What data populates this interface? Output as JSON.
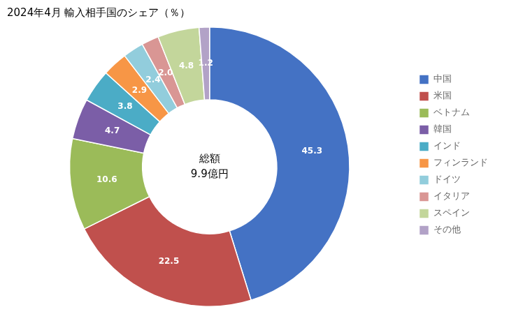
{
  "chart_data": {
    "type": "doughnut",
    "title": "2024年4月 輸入相手国のシェア（％）",
    "annotations": [
      "総額",
      "9.9億円"
    ],
    "categories": [
      "中国",
      "米国",
      "ベトナム",
      "韓国",
      "インド",
      "フィンランド",
      "ドイツ",
      "イタリア",
      "スペイン",
      "その他"
    ],
    "values": [
      45.3,
      22.5,
      10.6,
      4.7,
      3.8,
      2.9,
      2.4,
      2.0,
      4.8,
      1.2
    ],
    "value_labels": [
      "45.3",
      "22.5",
      "10.6",
      "4.7",
      "3.8",
      "2.9",
      "2.4",
      "2.0",
      "4.8",
      "1.2"
    ],
    "colors": [
      "#4472C4",
      "#C0504D",
      "#9BBB59",
      "#7B5EA7",
      "#4BACC6",
      "#F79646",
      "#92CDDC",
      "#D99694",
      "#C3D69B",
      "#B2A2C7"
    ],
    "data_labels": true,
    "legend": "right"
  }
}
